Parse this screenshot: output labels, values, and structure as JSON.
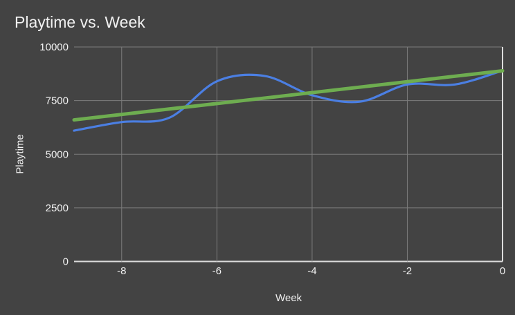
{
  "chart_data": {
    "type": "line",
    "title": "Playtime vs. Week",
    "xlabel": "Week",
    "ylabel": "Playtime",
    "x": [
      -9,
      -8,
      -7,
      -6,
      -5,
      -4,
      -3,
      -2,
      -1,
      0
    ],
    "series": [
      {
        "name": "Playtime",
        "line_style": "smooth",
        "color": "#4b7fe3",
        "stroke_width": 3.2,
        "values": [
          6100,
          6500,
          6700,
          8400,
          8650,
          7750,
          7450,
          8250,
          8250,
          8900
        ]
      },
      {
        "name": "Trendline",
        "line_style": "straight",
        "color": "#6ead50",
        "stroke_width": 5,
        "x": [
          -9,
          0
        ],
        "values": [
          6600,
          8890
        ]
      }
    ],
    "xlim": [
      -9,
      0
    ],
    "ylim": [
      0,
      10000
    ],
    "xticks": [
      -8,
      -6,
      -4,
      -2,
      0
    ],
    "yticks": [
      0,
      2500,
      5000,
      7500,
      10000
    ],
    "grid": true,
    "legend_position": "none",
    "colors": {
      "background": "#434343",
      "title_text": "#f1f1f1",
      "tick_text": "#f2f2f2",
      "gridline": "#7d7d7d",
      "axis_line": "#dcdcdc"
    }
  }
}
